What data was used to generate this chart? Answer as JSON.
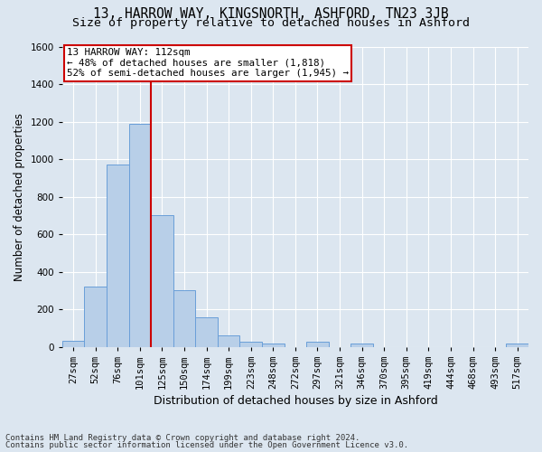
{
  "title": "13, HARROW WAY, KINGSNORTH, ASHFORD, TN23 3JB",
  "subtitle": "Size of property relative to detached houses in Ashford",
  "xlabel": "Distribution of detached houses by size in Ashford",
  "ylabel": "Number of detached properties",
  "footnote1": "Contains HM Land Registry data © Crown copyright and database right 2024.",
  "footnote2": "Contains public sector information licensed under the Open Government Licence v3.0.",
  "categories": [
    "27sqm",
    "52sqm",
    "76sqm",
    "101sqm",
    "125sqm",
    "150sqm",
    "174sqm",
    "199sqm",
    "223sqm",
    "248sqm",
    "272sqm",
    "297sqm",
    "321sqm",
    "346sqm",
    "370sqm",
    "395sqm",
    "419sqm",
    "444sqm",
    "468sqm",
    "493sqm",
    "517sqm"
  ],
  "values": [
    30,
    320,
    970,
    1190,
    700,
    300,
    155,
    60,
    25,
    15,
    0,
    25,
    0,
    15,
    0,
    0,
    0,
    0,
    0,
    0,
    15
  ],
  "bar_color": "#b8cfe8",
  "bar_edge_color": "#6a9fd8",
  "vline_color": "#cc0000",
  "vline_x_index": 3.5,
  "annotation_text": "13 HARROW WAY: 112sqm\n← 48% of detached houses are smaller (1,818)\n52% of semi-detached houses are larger (1,945) →",
  "annotation_box_facecolor": "#ffffff",
  "annotation_box_edgecolor": "#cc0000",
  "ylim": [
    0,
    1600
  ],
  "yticks": [
    0,
    200,
    400,
    600,
    800,
    1000,
    1200,
    1400,
    1600
  ],
  "bg_color": "#dce6f0",
  "plot_bg_color": "#dce6f0",
  "title_fontsize": 10.5,
  "subtitle_fontsize": 9.5,
  "tick_fontsize": 7.5,
  "ylabel_fontsize": 8.5,
  "xlabel_fontsize": 9,
  "annotation_fontsize": 7.8,
  "footnote_fontsize": 6.5
}
